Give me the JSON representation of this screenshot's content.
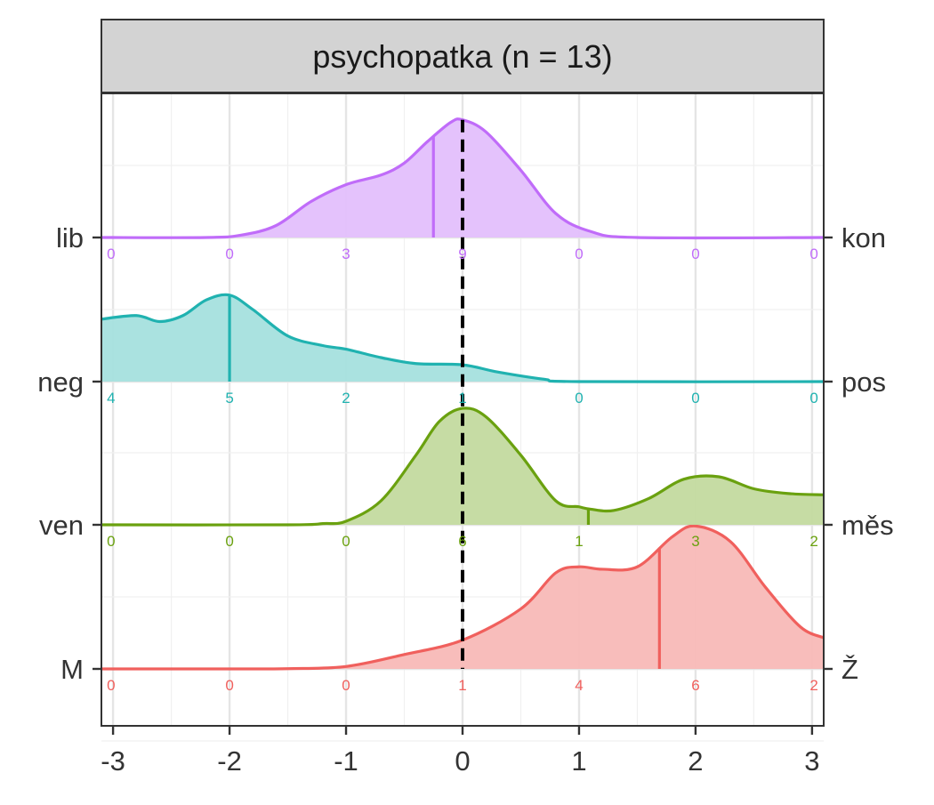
{
  "chart_data": {
    "type": "ridgeline",
    "facet_title": "psychopatka (n = 13)",
    "xlim": [
      -3.1,
      3.1
    ],
    "x_ticks": [
      -3,
      -2,
      -1,
      0,
      1,
      2,
      3
    ],
    "x_tick_labels": [
      "-3",
      "-2",
      "-1",
      "0",
      "1",
      "2",
      "3"
    ],
    "count_positions": [
      -3,
      -2,
      -1,
      0,
      1,
      2,
      3
    ],
    "reference_line_x": 0,
    "grid": true,
    "rows": [
      {
        "left_label": "M",
        "right_label": "Ž",
        "color": "#F0605D",
        "fill": "#F8B9B7",
        "counts": [
          0,
          0,
          0,
          1,
          4,
          6,
          2
        ],
        "mean": 1.69,
        "density": [
          [
            -3.1,
            0
          ],
          [
            -2,
            0
          ],
          [
            -1.5,
            0.002
          ],
          [
            -1,
            0.02
          ],
          [
            -0.5,
            0.12
          ],
          [
            0,
            0.24
          ],
          [
            0.5,
            0.5
          ],
          [
            0.8,
            0.8
          ],
          [
            1,
            0.85
          ],
          [
            1.2,
            0.83
          ],
          [
            1.5,
            0.85
          ],
          [
            1.8,
            1.1
          ],
          [
            2,
            1.19
          ],
          [
            2.3,
            1.06
          ],
          [
            2.6,
            0.68
          ],
          [
            2.9,
            0.35
          ],
          [
            3.1,
            0.26
          ]
        ]
      },
      {
        "left_label": "ven",
        "right_label": "měs",
        "color": "#6AA10F",
        "fill": "#C3DA9F",
        "counts": [
          0,
          0,
          0,
          6,
          1,
          3,
          2
        ],
        "mean": 1.08,
        "density": [
          [
            -3.1,
            0
          ],
          [
            -1.5,
            0
          ],
          [
            -1.2,
            0.01
          ],
          [
            -1,
            0.03
          ],
          [
            -0.7,
            0.2
          ],
          [
            -0.4,
            0.58
          ],
          [
            -0.2,
            0.86
          ],
          [
            0,
            0.97
          ],
          [
            0.2,
            0.9
          ],
          [
            0.5,
            0.58
          ],
          [
            0.8,
            0.2
          ],
          [
            1,
            0.15
          ],
          [
            1.1,
            0.13
          ],
          [
            1.3,
            0.12
          ],
          [
            1.6,
            0.22
          ],
          [
            1.9,
            0.38
          ],
          [
            2.2,
            0.4
          ],
          [
            2.5,
            0.3
          ],
          [
            2.8,
            0.26
          ],
          [
            3.1,
            0.25
          ]
        ]
      },
      {
        "left_label": "neg",
        "right_label": "pos",
        "color": "#20B2B0",
        "fill": "#A5E0DE",
        "counts": [
          4,
          5,
          2,
          1,
          0,
          0,
          0
        ],
        "mean": -2,
        "density": [
          [
            -3.1,
            0.52
          ],
          [
            -2.8,
            0.55
          ],
          [
            -2.6,
            0.5
          ],
          [
            -2.4,
            0.55
          ],
          [
            -2.2,
            0.68
          ],
          [
            -2,
            0.72
          ],
          [
            -1.8,
            0.6
          ],
          [
            -1.5,
            0.38
          ],
          [
            -1.2,
            0.3
          ],
          [
            -1,
            0.27
          ],
          [
            -0.7,
            0.2
          ],
          [
            -0.4,
            0.15
          ],
          [
            0,
            0.14
          ],
          [
            0.3,
            0.08
          ],
          [
            0.7,
            0.02
          ],
          [
            1,
            0
          ],
          [
            3.1,
            0
          ]
        ]
      },
      {
        "left_label": "lib",
        "right_label": "kon",
        "color": "#C06CF9",
        "fill": "#E3BFFC",
        "counts": [
          0,
          0,
          3,
          9,
          0,
          0,
          0
        ],
        "mean": -0.25,
        "density": [
          [
            -3.1,
            0
          ],
          [
            -2.2,
            0
          ],
          [
            -1.9,
            0.02
          ],
          [
            -1.6,
            0.1
          ],
          [
            -1.3,
            0.3
          ],
          [
            -1,
            0.44
          ],
          [
            -0.7,
            0.52
          ],
          [
            -0.5,
            0.62
          ],
          [
            -0.3,
            0.8
          ],
          [
            -0.1,
            0.96
          ],
          [
            0,
            0.98
          ],
          [
            0.2,
            0.88
          ],
          [
            0.5,
            0.56
          ],
          [
            0.8,
            0.2
          ],
          [
            1.1,
            0.05
          ],
          [
            1.5,
            0
          ],
          [
            3.1,
            0
          ]
        ]
      }
    ]
  }
}
